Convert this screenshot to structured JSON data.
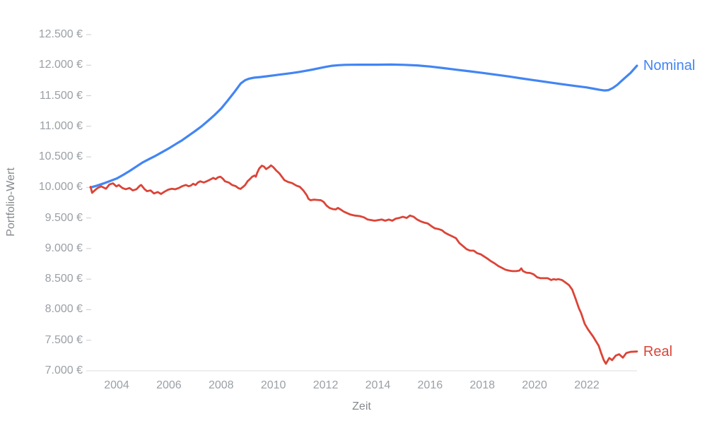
{
  "chart_data": {
    "type": "line",
    "title": "",
    "xlabel": "Zeit",
    "ylabel": "Portfolio-Wert",
    "x_range": [
      2003.0,
      2023.92
    ],
    "ylim": [
      7000,
      12500
    ],
    "grid": "baseline-only",
    "legend": "inline-labels-at-line-end",
    "currency_format": "#.### €",
    "x_ticks": [
      {
        "value": 2004,
        "label": "2004"
      },
      {
        "value": 2006,
        "label": "2006"
      },
      {
        "value": 2008,
        "label": "2008"
      },
      {
        "value": 2010,
        "label": "2010"
      },
      {
        "value": 2012,
        "label": "2012"
      },
      {
        "value": 2014,
        "label": "2014"
      },
      {
        "value": 2016,
        "label": "2016"
      },
      {
        "value": 2018,
        "label": "2018"
      },
      {
        "value": 2020,
        "label": "2020"
      },
      {
        "value": 2022,
        "label": "2022"
      }
    ],
    "y_ticks": [
      {
        "value": 12500,
        "label": "12.500 €"
      },
      {
        "value": 12000,
        "label": "12.000 €"
      },
      {
        "value": 11500,
        "label": "11.500 €"
      },
      {
        "value": 11000,
        "label": "11.000 €"
      },
      {
        "value": 10500,
        "label": "10.500 €"
      },
      {
        "value": 10000,
        "label": "10.000 €"
      },
      {
        "value": 9500,
        "label": "9.500 €"
      },
      {
        "value": 9000,
        "label": "9.000 €"
      },
      {
        "value": 8500,
        "label": "8.500 €"
      },
      {
        "value": 8000,
        "label": "8.000 €"
      },
      {
        "value": 7500,
        "label": "7.500 €"
      },
      {
        "value": 7000,
        "label": "7.000 €"
      }
    ],
    "colors": {
      "nominal": "#4285f4",
      "real": "#db4437",
      "axis_line": "#dcdcdc",
      "tick_mark": "#cccccc",
      "tick_label": "#9aa0a6",
      "axis_title": "#85898d"
    },
    "series": [
      {
        "name": "Nominal",
        "color": "#4285f4",
        "points": [
          [
            2003.0,
            10000
          ],
          [
            2003.25,
            10030
          ],
          [
            2003.5,
            10065
          ],
          [
            2003.75,
            10105
          ],
          [
            2004.0,
            10145
          ],
          [
            2004.25,
            10205
          ],
          [
            2004.5,
            10270
          ],
          [
            2004.75,
            10340
          ],
          [
            2005.0,
            10410
          ],
          [
            2005.25,
            10465
          ],
          [
            2005.5,
            10520
          ],
          [
            2005.75,
            10580
          ],
          [
            2006.0,
            10640
          ],
          [
            2006.25,
            10705
          ],
          [
            2006.5,
            10770
          ],
          [
            2006.75,
            10845
          ],
          [
            2007.0,
            10920
          ],
          [
            2007.25,
            11000
          ],
          [
            2007.5,
            11090
          ],
          [
            2007.75,
            11185
          ],
          [
            2008.0,
            11290
          ],
          [
            2008.25,
            11420
          ],
          [
            2008.5,
            11555
          ],
          [
            2008.75,
            11700
          ],
          [
            2008.92,
            11755
          ],
          [
            2009.08,
            11780
          ],
          [
            2009.25,
            11795
          ],
          [
            2009.5,
            11805
          ],
          [
            2009.75,
            11818
          ],
          [
            2010.0,
            11832
          ],
          [
            2010.25,
            11846
          ],
          [
            2010.5,
            11860
          ],
          [
            2010.75,
            11874
          ],
          [
            2011.0,
            11890
          ],
          [
            2011.25,
            11908
          ],
          [
            2011.5,
            11928
          ],
          [
            2011.75,
            11950
          ],
          [
            2012.0,
            11972
          ],
          [
            2012.25,
            11990
          ],
          [
            2012.5,
            12000
          ],
          [
            2012.75,
            12005
          ],
          [
            2013.0,
            12007
          ],
          [
            2013.5,
            12008
          ],
          [
            2014.0,
            12008
          ],
          [
            2014.5,
            12010
          ],
          [
            2015.0,
            12006
          ],
          [
            2015.5,
            11996
          ],
          [
            2016.0,
            11978
          ],
          [
            2016.5,
            11952
          ],
          [
            2017.0,
            11926
          ],
          [
            2017.5,
            11900
          ],
          [
            2018.0,
            11874
          ],
          [
            2018.5,
            11845
          ],
          [
            2019.0,
            11816
          ],
          [
            2019.5,
            11784
          ],
          [
            2020.0,
            11752
          ],
          [
            2020.5,
            11722
          ],
          [
            2021.0,
            11692
          ],
          [
            2021.5,
            11664
          ],
          [
            2022.0,
            11636
          ],
          [
            2022.25,
            11616
          ],
          [
            2022.5,
            11596
          ],
          [
            2022.67,
            11586
          ],
          [
            2022.83,
            11592
          ],
          [
            2023.0,
            11628
          ],
          [
            2023.17,
            11680
          ],
          [
            2023.33,
            11742
          ],
          [
            2023.5,
            11808
          ],
          [
            2023.67,
            11872
          ],
          [
            2023.92,
            11990
          ]
        ]
      },
      {
        "name": "Real",
        "color": "#db4437",
        "points": [
          [
            2003.0,
            10010
          ],
          [
            2003.06,
            9912
          ],
          [
            2003.17,
            9955
          ],
          [
            2003.27,
            9990
          ],
          [
            2003.41,
            10017
          ],
          [
            2003.59,
            9979
          ],
          [
            2003.72,
            10048
          ],
          [
            2003.86,
            10067
          ],
          [
            2003.99,
            10017
          ],
          [
            2004.08,
            10040
          ],
          [
            2004.22,
            9990
          ],
          [
            2004.35,
            9971
          ],
          [
            2004.49,
            9990
          ],
          [
            2004.62,
            9951
          ],
          [
            2004.76,
            9971
          ],
          [
            2004.89,
            10029
          ],
          [
            2004.94,
            10040
          ],
          [
            2005.07,
            9971
          ],
          [
            2005.16,
            9940
          ],
          [
            2005.3,
            9951
          ],
          [
            2005.43,
            9901
          ],
          [
            2005.57,
            9924
          ],
          [
            2005.7,
            9893
          ],
          [
            2005.84,
            9932
          ],
          [
            2005.97,
            9963
          ],
          [
            2006.11,
            9979
          ],
          [
            2006.24,
            9970
          ],
          [
            2006.38,
            9990
          ],
          [
            2006.51,
            10020
          ],
          [
            2006.65,
            10040
          ],
          [
            2006.75,
            10020
          ],
          [
            2006.84,
            10030
          ],
          [
            2006.93,
            10060
          ],
          [
            2007.02,
            10040
          ],
          [
            2007.11,
            10080
          ],
          [
            2007.2,
            10100
          ],
          [
            2007.34,
            10080
          ],
          [
            2007.47,
            10105
          ],
          [
            2007.61,
            10135
          ],
          [
            2007.7,
            10155
          ],
          [
            2007.79,
            10135
          ],
          [
            2007.88,
            10165
          ],
          [
            2007.97,
            10175
          ],
          [
            2008.06,
            10145
          ],
          [
            2008.15,
            10100
          ],
          [
            2008.29,
            10080
          ],
          [
            2008.42,
            10040
          ],
          [
            2008.56,
            10020
          ],
          [
            2008.65,
            9990
          ],
          [
            2008.74,
            9975
          ],
          [
            2008.83,
            10005
          ],
          [
            2008.92,
            10040
          ],
          [
            2009.01,
            10100
          ],
          [
            2009.1,
            10135
          ],
          [
            2009.19,
            10175
          ],
          [
            2009.28,
            10195
          ],
          [
            2009.33,
            10175
          ],
          [
            2009.38,
            10240
          ],
          [
            2009.46,
            10310
          ],
          [
            2009.56,
            10355
          ],
          [
            2009.64,
            10340
          ],
          [
            2009.72,
            10300
          ],
          [
            2009.83,
            10330
          ],
          [
            2009.91,
            10360
          ],
          [
            2010.0,
            10330
          ],
          [
            2010.1,
            10280
          ],
          [
            2010.23,
            10230
          ],
          [
            2010.42,
            10120
          ],
          [
            2010.56,
            10090
          ],
          [
            2010.72,
            10070
          ],
          [
            2010.88,
            10030
          ],
          [
            2011.01,
            10010
          ],
          [
            2011.15,
            9950
          ],
          [
            2011.28,
            9870
          ],
          [
            2011.34,
            9815
          ],
          [
            2011.42,
            9790
          ],
          [
            2011.55,
            9800
          ],
          [
            2011.69,
            9795
          ],
          [
            2011.82,
            9790
          ],
          [
            2011.93,
            9760
          ],
          [
            2012.04,
            9700
          ],
          [
            2012.15,
            9665
          ],
          [
            2012.28,
            9645
          ],
          [
            2012.39,
            9640
          ],
          [
            2012.47,
            9665
          ],
          [
            2012.55,
            9645
          ],
          [
            2012.69,
            9605
          ],
          [
            2012.82,
            9580
          ],
          [
            2012.96,
            9555
          ],
          [
            2013.12,
            9540
          ],
          [
            2013.31,
            9530
          ],
          [
            2013.47,
            9510
          ],
          [
            2013.61,
            9475
          ],
          [
            2013.88,
            9455
          ],
          [
            2014.15,
            9475
          ],
          [
            2014.28,
            9455
          ],
          [
            2014.42,
            9475
          ],
          [
            2014.55,
            9455
          ],
          [
            2014.69,
            9490
          ],
          [
            2014.82,
            9500
          ],
          [
            2014.96,
            9520
          ],
          [
            2015.1,
            9500
          ],
          [
            2015.23,
            9540
          ],
          [
            2015.37,
            9520
          ],
          [
            2015.5,
            9475
          ],
          [
            2015.64,
            9445
          ],
          [
            2015.77,
            9425
          ],
          [
            2015.91,
            9410
          ],
          [
            2016.04,
            9370
          ],
          [
            2016.18,
            9330
          ],
          [
            2016.31,
            9320
          ],
          [
            2016.45,
            9300
          ],
          [
            2016.58,
            9255
          ],
          [
            2016.72,
            9225
          ],
          [
            2016.85,
            9200
          ],
          [
            2016.99,
            9170
          ],
          [
            2017.12,
            9090
          ],
          [
            2017.26,
            9040
          ],
          [
            2017.4,
            8990
          ],
          [
            2017.53,
            8965
          ],
          [
            2017.67,
            8965
          ],
          [
            2017.8,
            8925
          ],
          [
            2017.94,
            8905
          ],
          [
            2018.07,
            8870
          ],
          [
            2018.21,
            8830
          ],
          [
            2018.34,
            8790
          ],
          [
            2018.48,
            8755
          ],
          [
            2018.61,
            8715
          ],
          [
            2018.75,
            8685
          ],
          [
            2018.88,
            8655
          ],
          [
            2019.02,
            8640
          ],
          [
            2019.15,
            8630
          ],
          [
            2019.29,
            8630
          ],
          [
            2019.42,
            8640
          ],
          [
            2019.49,
            8675
          ],
          [
            2019.56,
            8630
          ],
          [
            2019.69,
            8605
          ],
          [
            2019.83,
            8600
          ],
          [
            2019.96,
            8580
          ],
          [
            2020.1,
            8530
          ],
          [
            2020.23,
            8515
          ],
          [
            2020.37,
            8515
          ],
          [
            2020.5,
            8515
          ],
          [
            2020.64,
            8485
          ],
          [
            2020.73,
            8500
          ],
          [
            2020.82,
            8490
          ],
          [
            2020.91,
            8500
          ],
          [
            2021.05,
            8485
          ],
          [
            2021.18,
            8445
          ],
          [
            2021.32,
            8400
          ],
          [
            2021.44,
            8330
          ],
          [
            2021.57,
            8180
          ],
          [
            2021.7,
            8020
          ],
          [
            2021.78,
            7945
          ],
          [
            2021.92,
            7770
          ],
          [
            2022.05,
            7675
          ],
          [
            2022.24,
            7560
          ],
          [
            2022.46,
            7405
          ],
          [
            2022.55,
            7290
          ],
          [
            2022.65,
            7175
          ],
          [
            2022.73,
            7115
          ],
          [
            2022.86,
            7210
          ],
          [
            2022.97,
            7175
          ],
          [
            2023.11,
            7250
          ],
          [
            2023.24,
            7270
          ],
          [
            2023.38,
            7215
          ],
          [
            2023.51,
            7290
          ],
          [
            2023.67,
            7310
          ],
          [
            2023.92,
            7315
          ]
        ]
      }
    ]
  }
}
